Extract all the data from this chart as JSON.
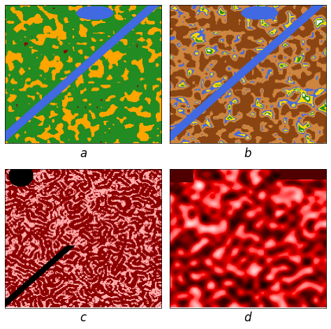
{
  "title": "",
  "labels": [
    "a",
    "b",
    "c",
    "d"
  ],
  "label_fontsize": 12,
  "label_style": "italic",
  "figsize": [
    4.74,
    4.71
  ],
  "dpi": 100,
  "background_color": "#ffffff",
  "seed": 42,
  "panel_a": {
    "colors": [
      "#ffa500",
      "#228b22",
      "#8b0000",
      "#4169e1",
      "#00008b",
      "#006400"
    ],
    "weights": [
      0.42,
      0.38,
      0.08,
      0.06,
      0.04,
      0.02
    ]
  },
  "panel_b": {
    "colors": [
      "#8b4513",
      "#cd853f",
      "#4169e1",
      "#ffd700",
      "#228b22",
      "#ffffff",
      "#ff0000",
      "#006400"
    ],
    "weights": [
      0.5,
      0.15,
      0.06,
      0.08,
      0.06,
      0.07,
      0.04,
      0.04
    ]
  },
  "panel_c": {
    "bg_color": "#f08080",
    "line_color": "#8b0000",
    "black_color": "#000000",
    "white_color": "#ffffff"
  },
  "panel_d": {
    "dark_color": "#8b0000",
    "mid_color": "#ff0000",
    "light_color": "#ffffff"
  }
}
